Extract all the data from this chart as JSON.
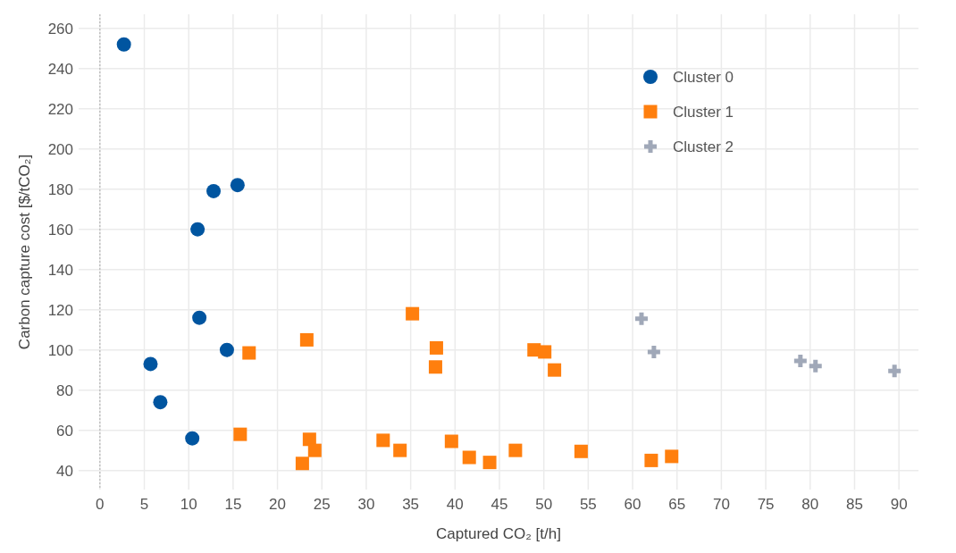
{
  "chart_data": {
    "type": "scatter",
    "xlabel": "Captured CO₂ [t/h]",
    "ylabel": "Carbon capture cost [$/tCO₂]",
    "xlim": [
      -2.4,
      92.2
    ],
    "ylim": [
      30.5,
      267
    ],
    "xticks": [
      0,
      5,
      10,
      15,
      20,
      25,
      30,
      35,
      40,
      45,
      50,
      55,
      60,
      65,
      70,
      75,
      80,
      85,
      90
    ],
    "yticks": [
      40,
      60,
      80,
      100,
      120,
      140,
      160,
      180,
      200,
      220,
      240,
      260
    ],
    "grid": true,
    "legend": "top right",
    "ref_lines": [
      {
        "axis": "x",
        "value": 0,
        "color": "#aaaaaa",
        "line_style": "dotted"
      }
    ],
    "series": [
      {
        "name": "Cluster 0",
        "color": "#0055a0",
        "marker": "circle",
        "x": [
          2.7,
          5.7,
          6.8,
          10.4,
          11,
          11.2,
          12.8,
          14.3,
          15.5
        ],
        "values": [
          252,
          93,
          74,
          56,
          160,
          116,
          179,
          100,
          182
        ]
      },
      {
        "name": "Cluster 1",
        "color": "#ff7f0e",
        "marker": "square",
        "x": [
          15.8,
          16.8,
          22.8,
          23.3,
          23.6,
          24.2,
          31.9,
          33.8,
          35.2,
          37.9,
          37.8,
          39.6,
          41.6,
          43.9,
          46.8,
          48.9,
          50.1,
          51.2,
          54.2,
          62.1,
          64.4
        ],
        "values": [
          58,
          98.5,
          43.5,
          105,
          55.5,
          50,
          55,
          50,
          118,
          101,
          91.5,
          54.5,
          46.5,
          44,
          50,
          100,
          99,
          90,
          49.5,
          45,
          47
        ]
      },
      {
        "name": "Cluster 2",
        "color": "#a0a8b8",
        "marker": "cross",
        "x": [
          61,
          62.4,
          78.9,
          80.6,
          89.5
        ],
        "values": [
          115.5,
          99,
          94.5,
          92,
          89.5
        ]
      }
    ]
  }
}
